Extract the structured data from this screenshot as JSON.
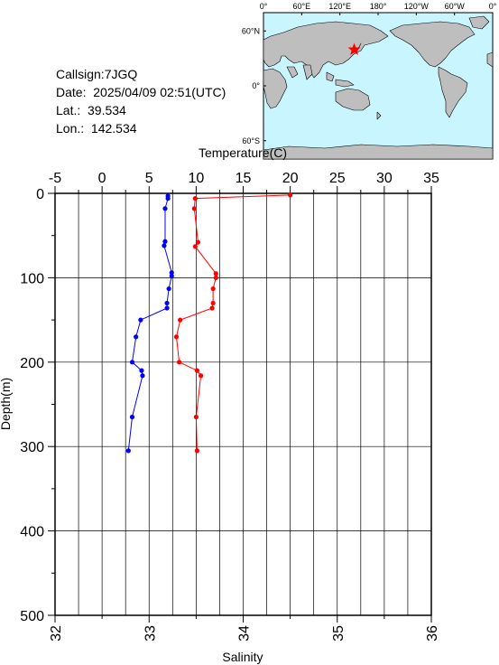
{
  "info": {
    "callsign": "Callsign:7JGQ",
    "date": "Date:  2025/04/09 02:51(UTC)",
    "lat": "Lat.:  39.534",
    "lon": "Lon.:  142.534"
  },
  "map": {
    "top_ticks": [
      "0°",
      "60°E",
      "120°E",
      "180°",
      "120°W",
      "60°W",
      "0°"
    ],
    "left_ticks": [
      "60°N",
      "0°",
      "60°S"
    ],
    "station": {
      "lat": 39.534,
      "lon": 142.534
    },
    "colors": {
      "ocean": "#c8f5ff",
      "land": "#bebebe",
      "marker": "#ff0000"
    }
  },
  "chart_data": {
    "type": "line",
    "title": "",
    "top_axis_label": "Temperature(C)",
    "top_axis_range": [
      -5,
      35
    ],
    "top_ticks": [
      "-5",
      "0",
      "5",
      "10",
      "15",
      "20",
      "25",
      "30",
      "35"
    ],
    "bottom_axis_label": "Salinity",
    "bottom_axis_range": [
      32,
      36
    ],
    "bottom_ticks": [
      "32",
      "33",
      "34",
      "35",
      "36"
    ],
    "y_axis_label": "Depth(m)",
    "y_range": [
      0,
      500
    ],
    "y_inverted": true,
    "y_ticks": [
      "0",
      "100",
      "200",
      "300",
      "400",
      "500"
    ],
    "grid": true,
    "series": [
      {
        "axis": "top",
        "color": "#ff0000",
        "points": [
          {
            "depth": 2,
            "value": 20.0
          },
          {
            "depth": 6,
            "value": 9.9
          },
          {
            "depth": 18,
            "value": 9.8
          },
          {
            "depth": 58,
            "value": 10.2
          },
          {
            "depth": 63,
            "value": 9.9
          },
          {
            "depth": 95,
            "value": 12.1
          },
          {
            "depth": 100,
            "value": 12.1
          },
          {
            "depth": 113,
            "value": 11.8
          },
          {
            "depth": 130,
            "value": 11.8
          },
          {
            "depth": 136,
            "value": 11.7
          },
          {
            "depth": 150,
            "value": 8.3
          },
          {
            "depth": 170,
            "value": 7.9
          },
          {
            "depth": 200,
            "value": 8.2
          },
          {
            "depth": 210,
            "value": 10.1
          },
          {
            "depth": 216,
            "value": 10.5
          },
          {
            "depth": 265,
            "value": 10.0
          },
          {
            "depth": 305,
            "value": 10.1
          }
        ]
      },
      {
        "axis": "bottom",
        "color": "#0000ff",
        "points": [
          {
            "depth": 3,
            "value": 33.2
          },
          {
            "depth": 6,
            "value": 33.2
          },
          {
            "depth": 18,
            "value": 33.17
          },
          {
            "depth": 57,
            "value": 33.17
          },
          {
            "depth": 62,
            "value": 33.16
          },
          {
            "depth": 94,
            "value": 33.24
          },
          {
            "depth": 98,
            "value": 33.24
          },
          {
            "depth": 113,
            "value": 33.21
          },
          {
            "depth": 130,
            "value": 33.19
          },
          {
            "depth": 136,
            "value": 33.19
          },
          {
            "depth": 150,
            "value": 32.91
          },
          {
            "depth": 170,
            "value": 32.86
          },
          {
            "depth": 200,
            "value": 32.82
          },
          {
            "depth": 210,
            "value": 32.92
          },
          {
            "depth": 216,
            "value": 32.93
          },
          {
            "depth": 265,
            "value": 32.82
          },
          {
            "depth": 305,
            "value": 32.78
          }
        ]
      }
    ]
  }
}
